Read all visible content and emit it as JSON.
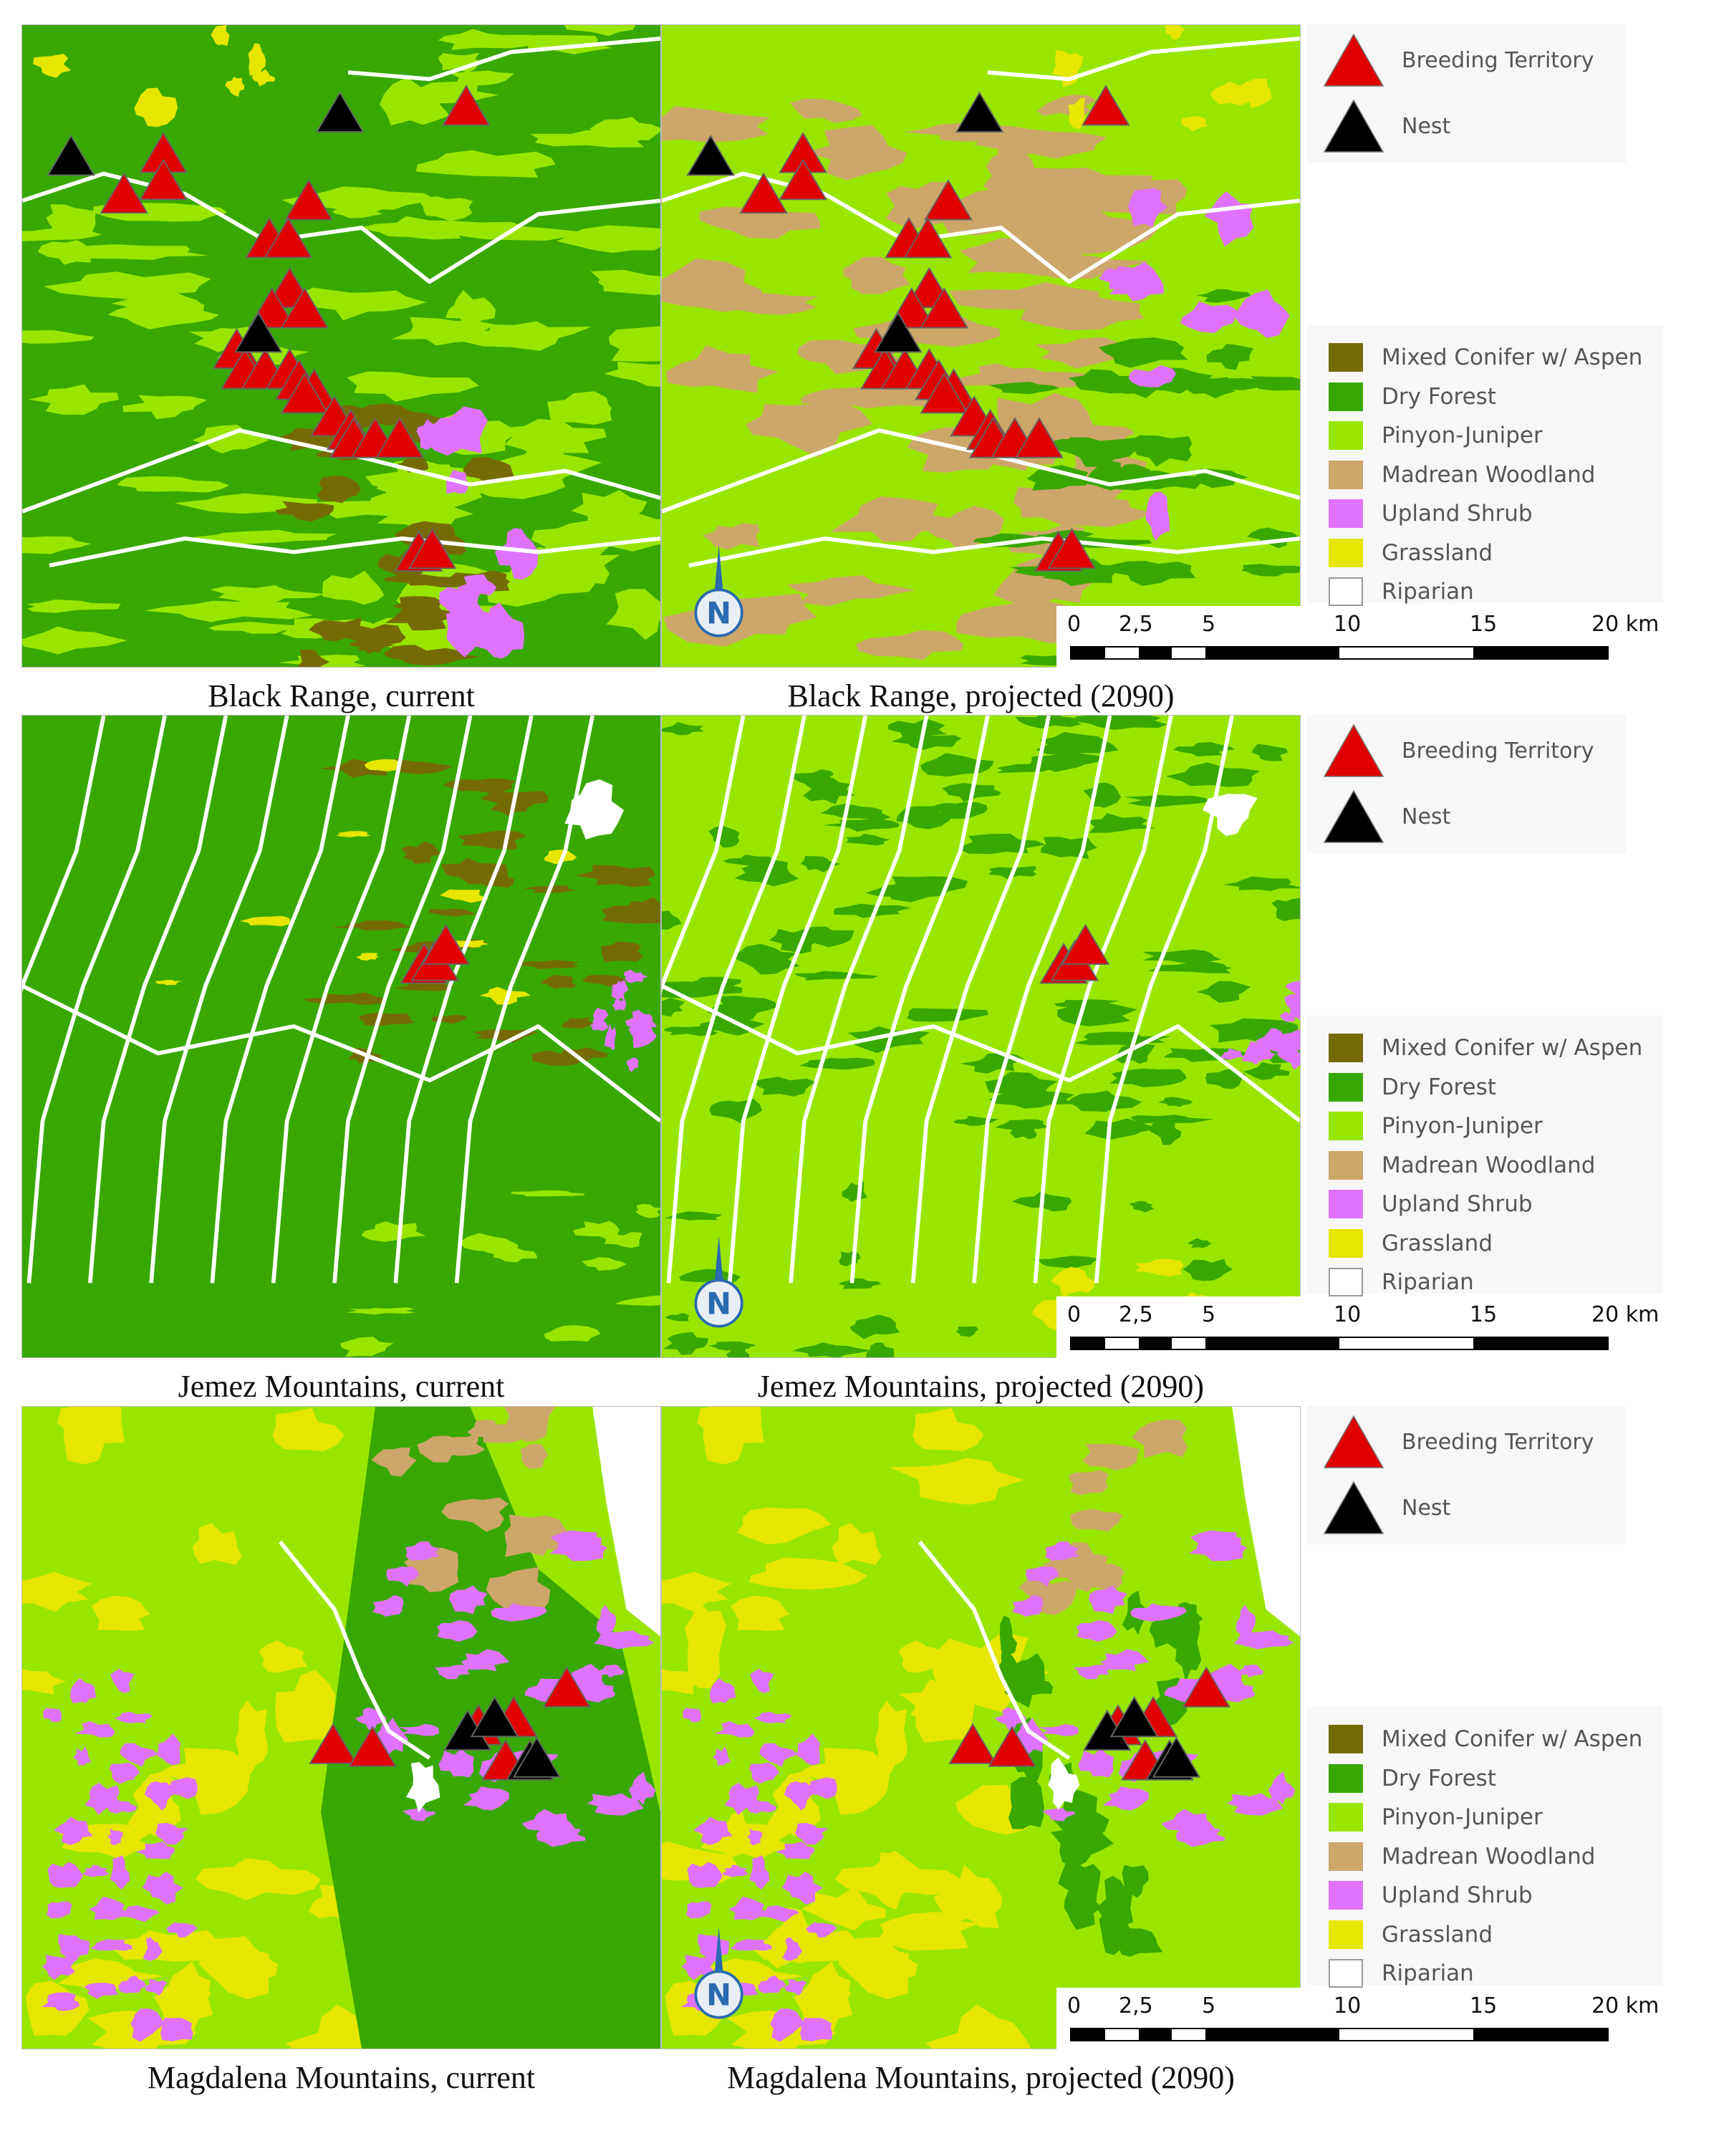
{
  "colors": {
    "mixed_conifer": "#756b05",
    "dry_forest": "#38a800",
    "pinyon_juniper": "#98e600",
    "madrean_woodland": "#cda66a",
    "upland_shrub": "#df73ff",
    "grassland": "#e6e600",
    "riparian": "#ffffff",
    "breeding_territory": "#e00000",
    "nest": "#000000"
  },
  "legend": {
    "markers": [
      {
        "label": "Breeding Territory",
        "icon": "red-triangle"
      },
      {
        "label": "Nest",
        "icon": "black-triangle"
      }
    ],
    "classes": [
      {
        "label": "Mixed Conifer w/ Aspen",
        "color": "#756b05"
      },
      {
        "label": "Dry Forest",
        "color": "#38a800"
      },
      {
        "label": "Pinyon-Juniper",
        "color": "#98e600"
      },
      {
        "label": "Madrean Woodland",
        "color": "#cda66a"
      },
      {
        "label": "Upland Shrub",
        "color": "#df73ff"
      },
      {
        "label": "Grassland",
        "color": "#e6e600"
      },
      {
        "label": "Riparian",
        "color": "#ffffff"
      }
    ]
  },
  "scale_bar": {
    "labels": [
      "0",
      "2,5",
      "5",
      "10",
      "15",
      "20 km"
    ],
    "unit": "km"
  },
  "north_arrow": "N",
  "panels": [
    {
      "name": "black-range",
      "current_caption": "Black Range, current",
      "projected_caption": "Black Range, projected (2090)"
    },
    {
      "name": "jemez-mountains",
      "current_caption": "Jemez Mountains, current",
      "projected_caption": "Jemez Mountains, projected (2090)"
    },
    {
      "name": "magdalena-mountains",
      "current_caption": "Magdalena Mountains, current",
      "projected_caption": "Magdalena Mountains, projected (2090)"
    }
  ]
}
